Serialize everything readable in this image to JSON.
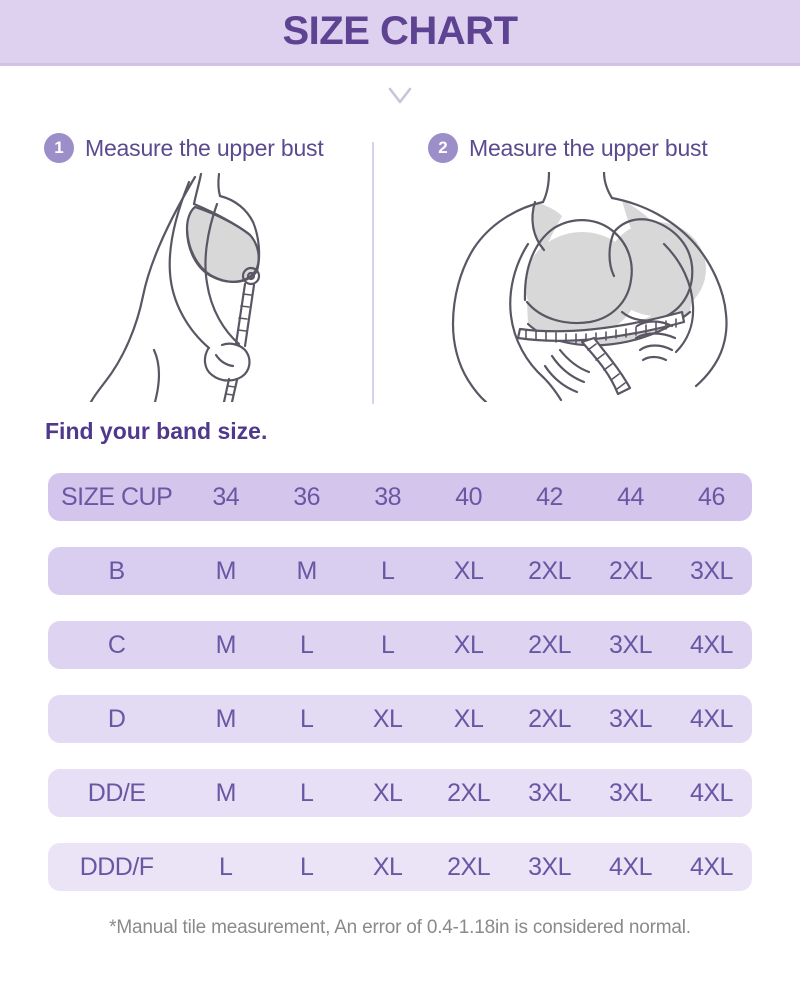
{
  "header": {
    "title": "SIZE CHART"
  },
  "steps": [
    {
      "number": "1",
      "label": "Measure the upper bust"
    },
    {
      "number": "2",
      "label": "Measure the upper bust"
    }
  ],
  "band_size_heading": "Find your band size.",
  "size_table": {
    "header": {
      "cells": [
        "SIZE CUP",
        "34",
        "36",
        "38",
        "40",
        "42",
        "44",
        "46"
      ],
      "bg": "#d3c5ec"
    },
    "rows": [
      {
        "cells": [
          "B",
          "M",
          "M",
          "L",
          "XL",
          "2XL",
          "2XL",
          "3XL"
        ],
        "bg": "#d9cdf0"
      },
      {
        "cells": [
          "C",
          "M",
          "L",
          "L",
          "XL",
          "2XL",
          "3XL",
          "4XL"
        ],
        "bg": "#ded4f2"
      },
      {
        "cells": [
          "D",
          "M",
          "L",
          "XL",
          "XL",
          "2XL",
          "3XL",
          "4XL"
        ],
        "bg": "#e3daf4"
      },
      {
        "cells": [
          "DD/E",
          "M",
          "L",
          "XL",
          "2XL",
          "3XL",
          "3XL",
          "4XL"
        ],
        "bg": "#e7dff5"
      },
      {
        "cells": [
          "DDD/F",
          "L",
          "L",
          "XL",
          "2XL",
          "3XL",
          "4XL",
          "4XL"
        ],
        "bg": "#ebe4f7"
      }
    ]
  },
  "footnote": "*Manual tile measurement, An error of 0.4-1.18in is considered normal.",
  "colors": {
    "banner_bg": "#ddd1ef",
    "banner_border": "#cfc2e6",
    "title_text": "#5d4391",
    "step_text": "#5b4a8e",
    "badge_bg": "#9c8ec8",
    "badge_text": "#ffffff",
    "divider": "#dbd0f0",
    "chevron": "#c9c5d8",
    "heading_text": "#50398c",
    "table_text": "#6a57a4",
    "footnote_text": "#8a8a8a",
    "illustration_stroke": "#5b5663",
    "illustration_fill": "#d8d8d8"
  }
}
